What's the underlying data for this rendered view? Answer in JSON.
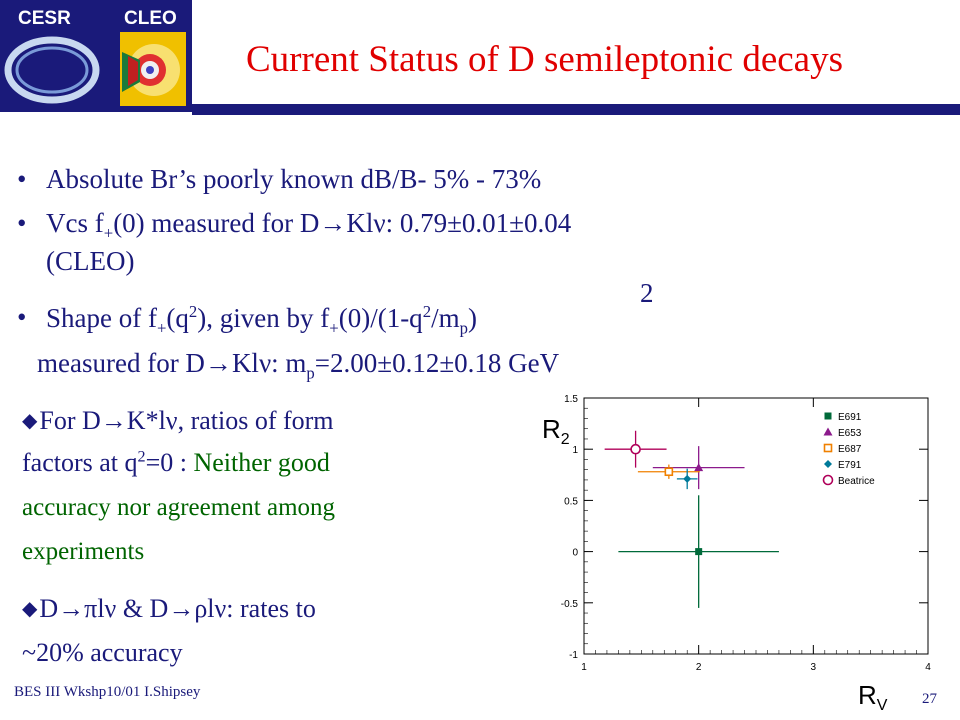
{
  "logo": {
    "cesr": "CESR",
    "cleo": "CLEO"
  },
  "title": "Current Status of D semileptonic decays",
  "bullets": {
    "b1": "Absolute Br’s  poorly known dB/B- 5% - 73%",
    "b2a": "Vcs f",
    "b2a_sub": "+",
    "b2b": "(0) measured for D",
    "b2c": "Kl",
    "b2d": ": 0.79±0.01±0.04",
    "b2e": "(CLEO)",
    "b3a": "Shape of f",
    "b3a_sub": "+",
    "b3b": "(q",
    "b3b_sup": "2",
    "b3c": "), given by f",
    "b3c_sub": "+",
    "b3d": "(0)/(1-q",
    "b3d_sup": "2",
    "b3e": "/m",
    "b3e_sub": "p",
    "b3f": ")",
    "b3_pow": "2",
    "b4a": "measured for D",
    "b4b": "Kl",
    "b4c": ": m",
    "b4c_sub": "p",
    "b4d": "=2.00±0.12±0.18 GeV"
  },
  "sub_bullets": {
    "s1a": "For D",
    "s1b": "K*l",
    "s1c": ",  ratios of form",
    "s1d": "factors at q",
    "s1d_sup": "2",
    "s1e": "=0 : ",
    "s1f": "Neither good",
    "s1g": "accuracy nor agreement among",
    "s1h": "experiments",
    "s2a": "D",
    "s2b": "l",
    "s2c": " & D",
    "s2d": "l",
    "s2e": ": rates to",
    "s2f": "~20% accuracy"
  },
  "symbols": {
    "arrow": "→",
    "nu": "ν",
    "pi": "π",
    "rho": "ρ",
    "diamond": "u",
    "bullet": "•"
  },
  "footer": "BES III Wkshp10/01 I.Shipsey",
  "page_number": "27",
  "chart_data": {
    "type": "scatter",
    "ylabel": "R",
    "ylabel_sub": "2",
    "xlabel": "R",
    "xlabel_sub": "V",
    "xlim": [
      1,
      4
    ],
    "ylim": [
      -1,
      1.5
    ],
    "xticks": [
      "1",
      "2",
      "3",
      "4"
    ],
    "yticks": [
      "1.5",
      "1",
      "0.5",
      "0",
      "-0.5",
      "-1"
    ],
    "legend_position": "top-right",
    "series": [
      {
        "name": "E691",
        "marker": "square-filled",
        "color": "#006a3a",
        "x": 2.0,
        "y": 0.0,
        "xerr": [
          0.7,
          0.7
        ],
        "yerr": [
          0.55,
          0.55
        ]
      },
      {
        "name": "E653",
        "marker": "triangle",
        "color": "#8c1a8c",
        "x": 2.0,
        "y": 0.82,
        "xerr": [
          0.4,
          0.4
        ],
        "yerr": [
          0.21,
          0.21
        ]
      },
      {
        "name": "E687",
        "marker": "square-open",
        "color": "#f08000",
        "x": 1.74,
        "y": 0.78,
        "xerr": [
          0.27,
          0.27
        ],
        "yerr": [
          0.07,
          0.07
        ]
      },
      {
        "name": "E791",
        "marker": "diamond",
        "color": "#007a9a",
        "x": 1.9,
        "y": 0.71,
        "xerr": [
          0.09,
          0.09
        ],
        "yerr": [
          0.1,
          0.1
        ]
      },
      {
        "name": "Beatrice",
        "marker": "circle-open",
        "color": "#b0005a",
        "x": 1.45,
        "y": 1.0,
        "xerr": [
          0.27,
          0.27
        ],
        "yerr": [
          0.18,
          0.18
        ]
      }
    ]
  }
}
